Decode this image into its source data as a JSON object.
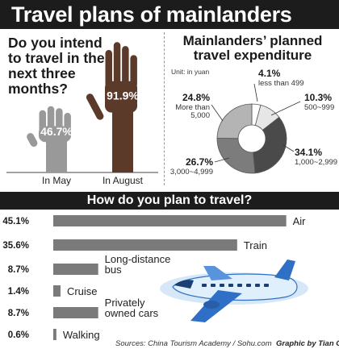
{
  "title": "Travel plans of mainlanders",
  "question1": {
    "text": "Do you intend to travel in the next three months?",
    "bars": [
      {
        "label": "In May",
        "value": 46.7,
        "value_text": "46.7%"
      },
      {
        "label": "In August",
        "value": 91.9,
        "value_text": "91.9%"
      }
    ]
  },
  "expenditure": {
    "title_line1": "Mainlanders’ planned",
    "title_line2": "travel expenditure",
    "unit": "Unit: in yuan"
  },
  "question2": {
    "title": "How do you plan to travel?"
  },
  "source": "Sources: China Tourism Academy / Sohu.com",
  "credit": "Graphic by Tian Chi",
  "colors": {
    "bar": "#7a7a7a",
    "hand_may": "#999999",
    "hand_august": "#5b3a2a",
    "banner": "#1c1c1c",
    "sky": "#d6e8f7",
    "plane": "#2f6fc5"
  },
  "chart_data": [
    {
      "type": "bar",
      "categories": [
        "In May",
        "In August"
      ],
      "values": [
        46.7,
        91.9
      ],
      "unit": "%"
    },
    {
      "type": "pie",
      "title": "Mainlanders’ planned travel expenditure",
      "unit": "Unit: in yuan",
      "slices": [
        {
          "value": 4.1,
          "value_text": "4.1%",
          "label": "less than 499",
          "color": "#ffffff"
        },
        {
          "value": 10.3,
          "value_text": "10.3%",
          "label": "500~999",
          "color": "#e6e6e6"
        },
        {
          "value": 34.1,
          "value_text": "34.1%",
          "label": "1,000~2,999",
          "color": "#4a4a4a"
        },
        {
          "value": 26.7,
          "value_text": "26.7%",
          "label": "3,000~4,999",
          "color": "#7c7c7c"
        },
        {
          "value": 24.8,
          "value_text": "24.8%",
          "label": "More than 5,000",
          "color": "#b4b4b4"
        }
      ]
    },
    {
      "type": "bar",
      "title": "How do you plan to travel?",
      "categories": [
        "Air",
        "Train",
        "Long-distance bus",
        "Cruise",
        "Privately owned cars",
        "Walking"
      ],
      "values": [
        45.1,
        35.6,
        8.7,
        1.4,
        8.7,
        0.6
      ],
      "value_texts": [
        "45.1%",
        "35.6%",
        "8.7%",
        "1.4%",
        "8.7%",
        "0.6%"
      ],
      "label_lines": [
        [
          "Air"
        ],
        [
          "Train"
        ],
        [
          "Long-distance",
          "bus"
        ],
        [
          "Cruise"
        ],
        [
          "Privately",
          "owned cars"
        ],
        [
          "Walking"
        ]
      ]
    }
  ]
}
